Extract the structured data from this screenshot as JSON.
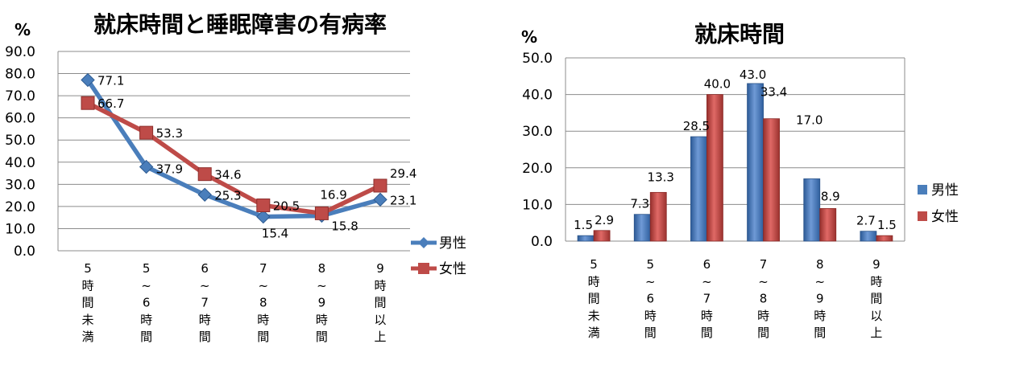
{
  "chart_data": [
    {
      "type": "line",
      "title": "就床時間と睡眠障害の有病率",
      "unit": "%",
      "categories": [
        [
          "5",
          "時",
          "間",
          "未",
          "満"
        ],
        [
          "5",
          "~",
          "6",
          "時",
          "間"
        ],
        [
          "6",
          "~",
          "7",
          "時",
          "間"
        ],
        [
          "7",
          "~",
          "8",
          "時",
          "間"
        ],
        [
          "8",
          "~",
          "9",
          "時",
          "間"
        ],
        [
          "9",
          "時",
          "間",
          "以",
          "上"
        ]
      ],
      "yticks": [
        "90.0",
        "80.0",
        "70.0",
        "60.0",
        "50.0",
        "40.0",
        "30.0",
        "20.0",
        "10.0",
        "0.0"
      ],
      "ylim": [
        0,
        90
      ],
      "grid": true,
      "legend_position": "right",
      "series": [
        {
          "name": "男性",
          "values": [
            77.1,
            37.9,
            25.3,
            15.4,
            15.8,
            23.1
          ],
          "labels": [
            "77.1",
            "37.9",
            "25.3",
            "15.4",
            "15.8",
            "23.1"
          ],
          "color": "#4a7ebb",
          "marker": "diamond"
        },
        {
          "name": "女性",
          "values": [
            66.7,
            53.3,
            34.6,
            20.5,
            16.9,
            29.4
          ],
          "labels": [
            "66.7",
            "53.3",
            "34.6",
            "20.5",
            "16.9",
            "29.4"
          ],
          "color": "#be4b48",
          "marker": "square"
        }
      ]
    },
    {
      "type": "bar",
      "title": "就床時間",
      "unit": "%",
      "categories": [
        [
          "5",
          "時",
          "間",
          "未",
          "満"
        ],
        [
          "5",
          "~",
          "6",
          "時",
          "間"
        ],
        [
          "6",
          "~",
          "7",
          "時",
          "間"
        ],
        [
          "7",
          "~",
          "8",
          "時",
          "間"
        ],
        [
          "8",
          "~",
          "9",
          "時",
          "間"
        ],
        [
          "9",
          "時",
          "間",
          "以",
          "上"
        ]
      ],
      "yticks": [
        "50.0",
        "40.0",
        "30.0",
        "20.0",
        "10.0",
        "0.0"
      ],
      "ylim": [
        0,
        50
      ],
      "grid": true,
      "legend_position": "right",
      "series": [
        {
          "name": "男性",
          "values": [
            1.5,
            7.3,
            28.5,
            43.0,
            17.0,
            2.7
          ],
          "labels": [
            "1.5",
            "7.3",
            "28.5",
            "43.0",
            "17.0",
            "2.7"
          ],
          "color": "#4a7ebb"
        },
        {
          "name": "女性",
          "values": [
            2.9,
            13.3,
            40.0,
            33.4,
            8.9,
            1.5
          ],
          "labels": [
            "2.9",
            "13.3",
            "40.0",
            "33.4",
            "8.9",
            "1.5"
          ],
          "color": "#be4b48"
        }
      ]
    }
  ]
}
